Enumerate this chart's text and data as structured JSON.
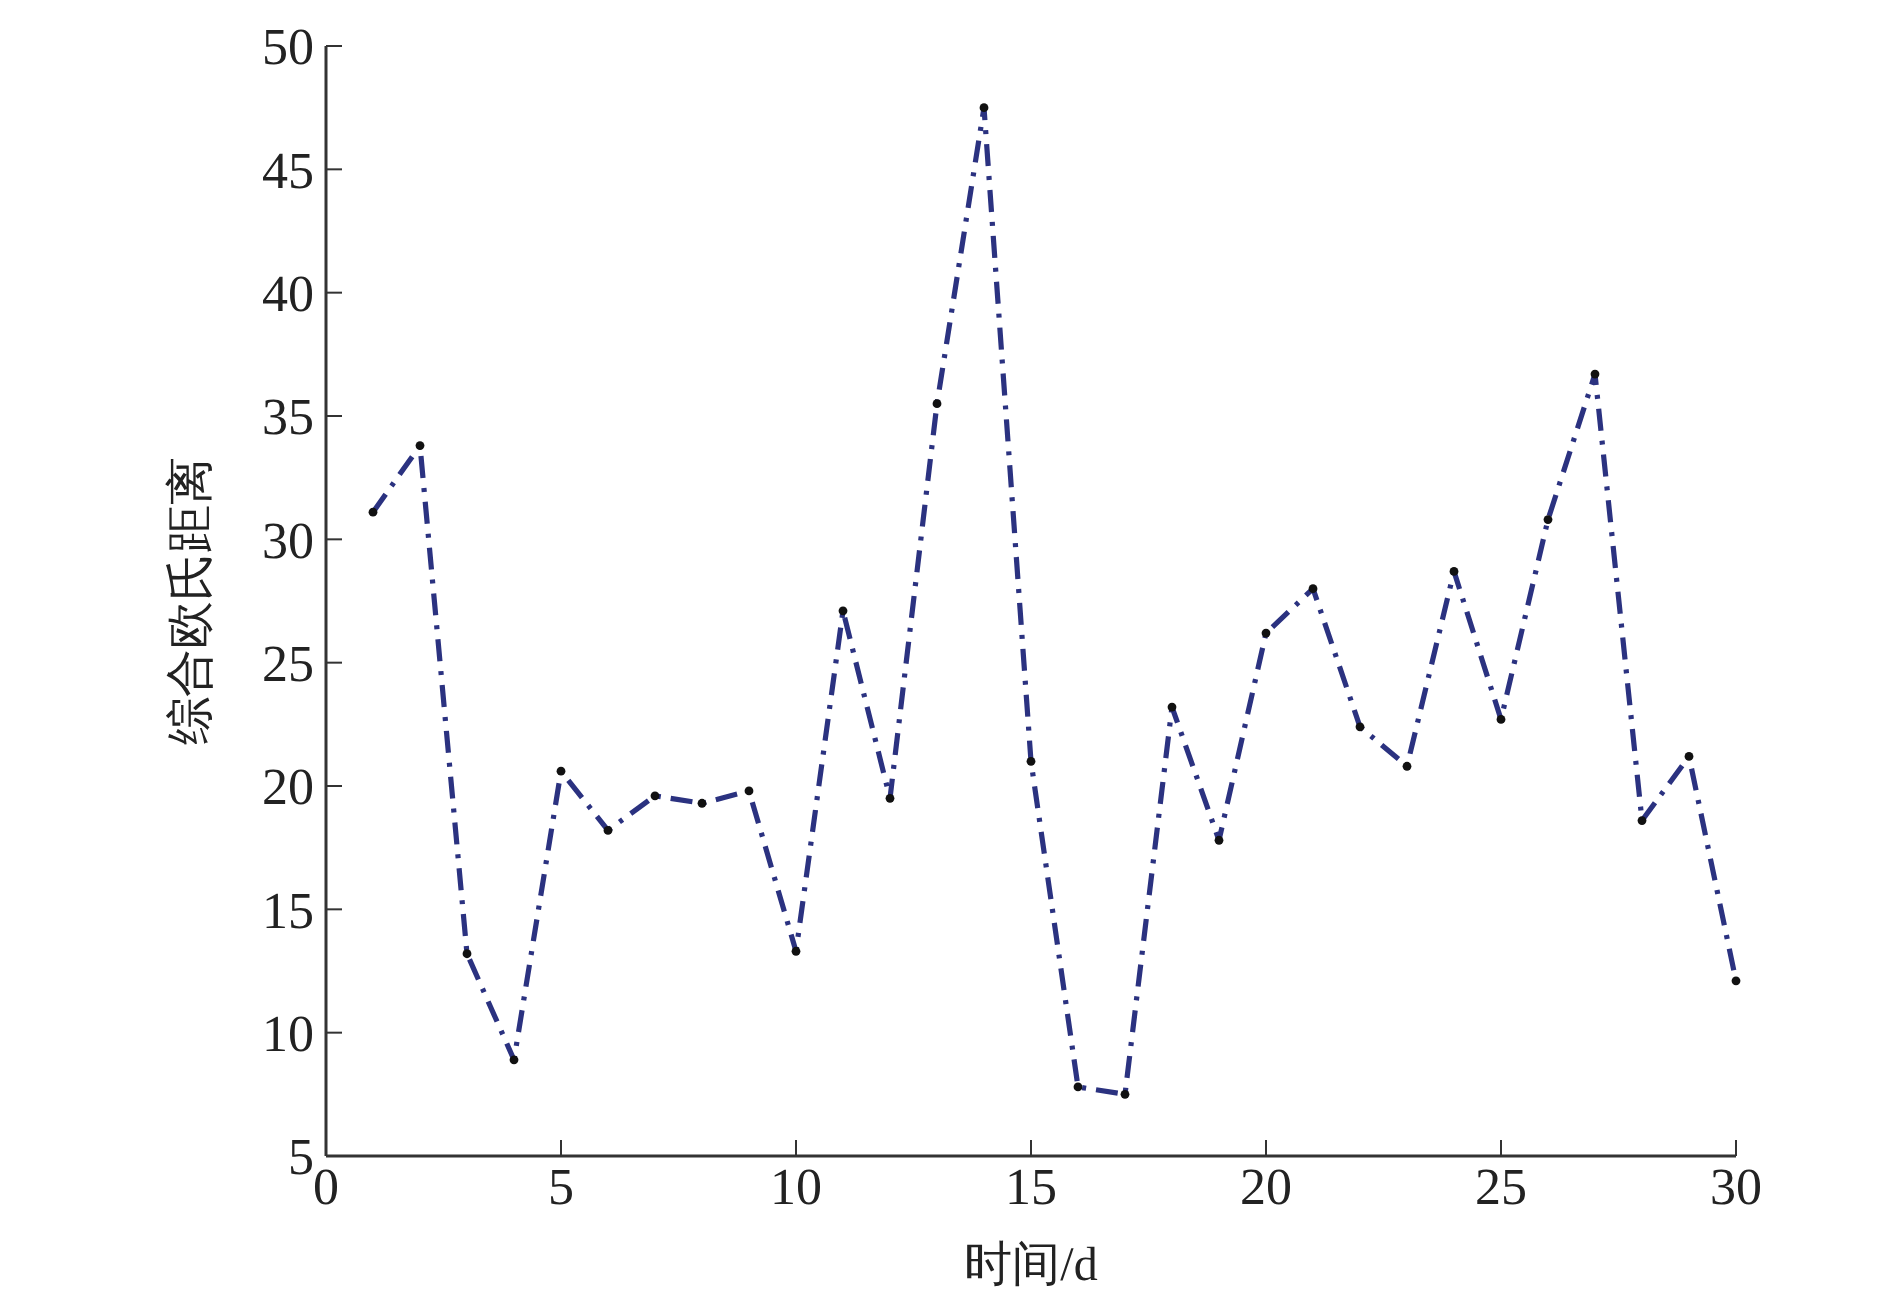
{
  "chart_data": {
    "type": "line",
    "xlabel": "时间/d",
    "ylabel": "综合欧氏距离",
    "x": [
      1,
      2,
      3,
      4,
      5,
      6,
      7,
      8,
      9,
      10,
      11,
      12,
      13,
      14,
      15,
      16,
      17,
      18,
      19,
      20,
      21,
      22,
      23,
      24,
      25,
      26,
      27,
      28,
      29,
      30
    ],
    "series": [
      {
        "color": "#2b3280",
        "values": [
          31.1,
          33.8,
          13.2,
          8.9,
          20.6,
          18.2,
          19.6,
          19.3,
          19.8,
          13.3,
          27.1,
          19.5,
          35.5,
          47.5,
          21.0,
          7.8,
          7.5,
          23.2,
          17.8,
          26.2,
          28.0,
          22.4,
          20.8,
          28.7,
          22.7,
          30.8,
          36.7,
          18.6,
          21.2,
          12.1
        ]
      }
    ],
    "xlim": [
      0,
      30
    ],
    "xticks": [
      0,
      5,
      10,
      15,
      20,
      25,
      30
    ],
    "ylim": [
      5,
      50
    ],
    "yticks": [
      5,
      10,
      15,
      20,
      25,
      30,
      35,
      40,
      45,
      50
    ],
    "grid": false,
    "marker": "circle",
    "line_style": "dashed"
  }
}
